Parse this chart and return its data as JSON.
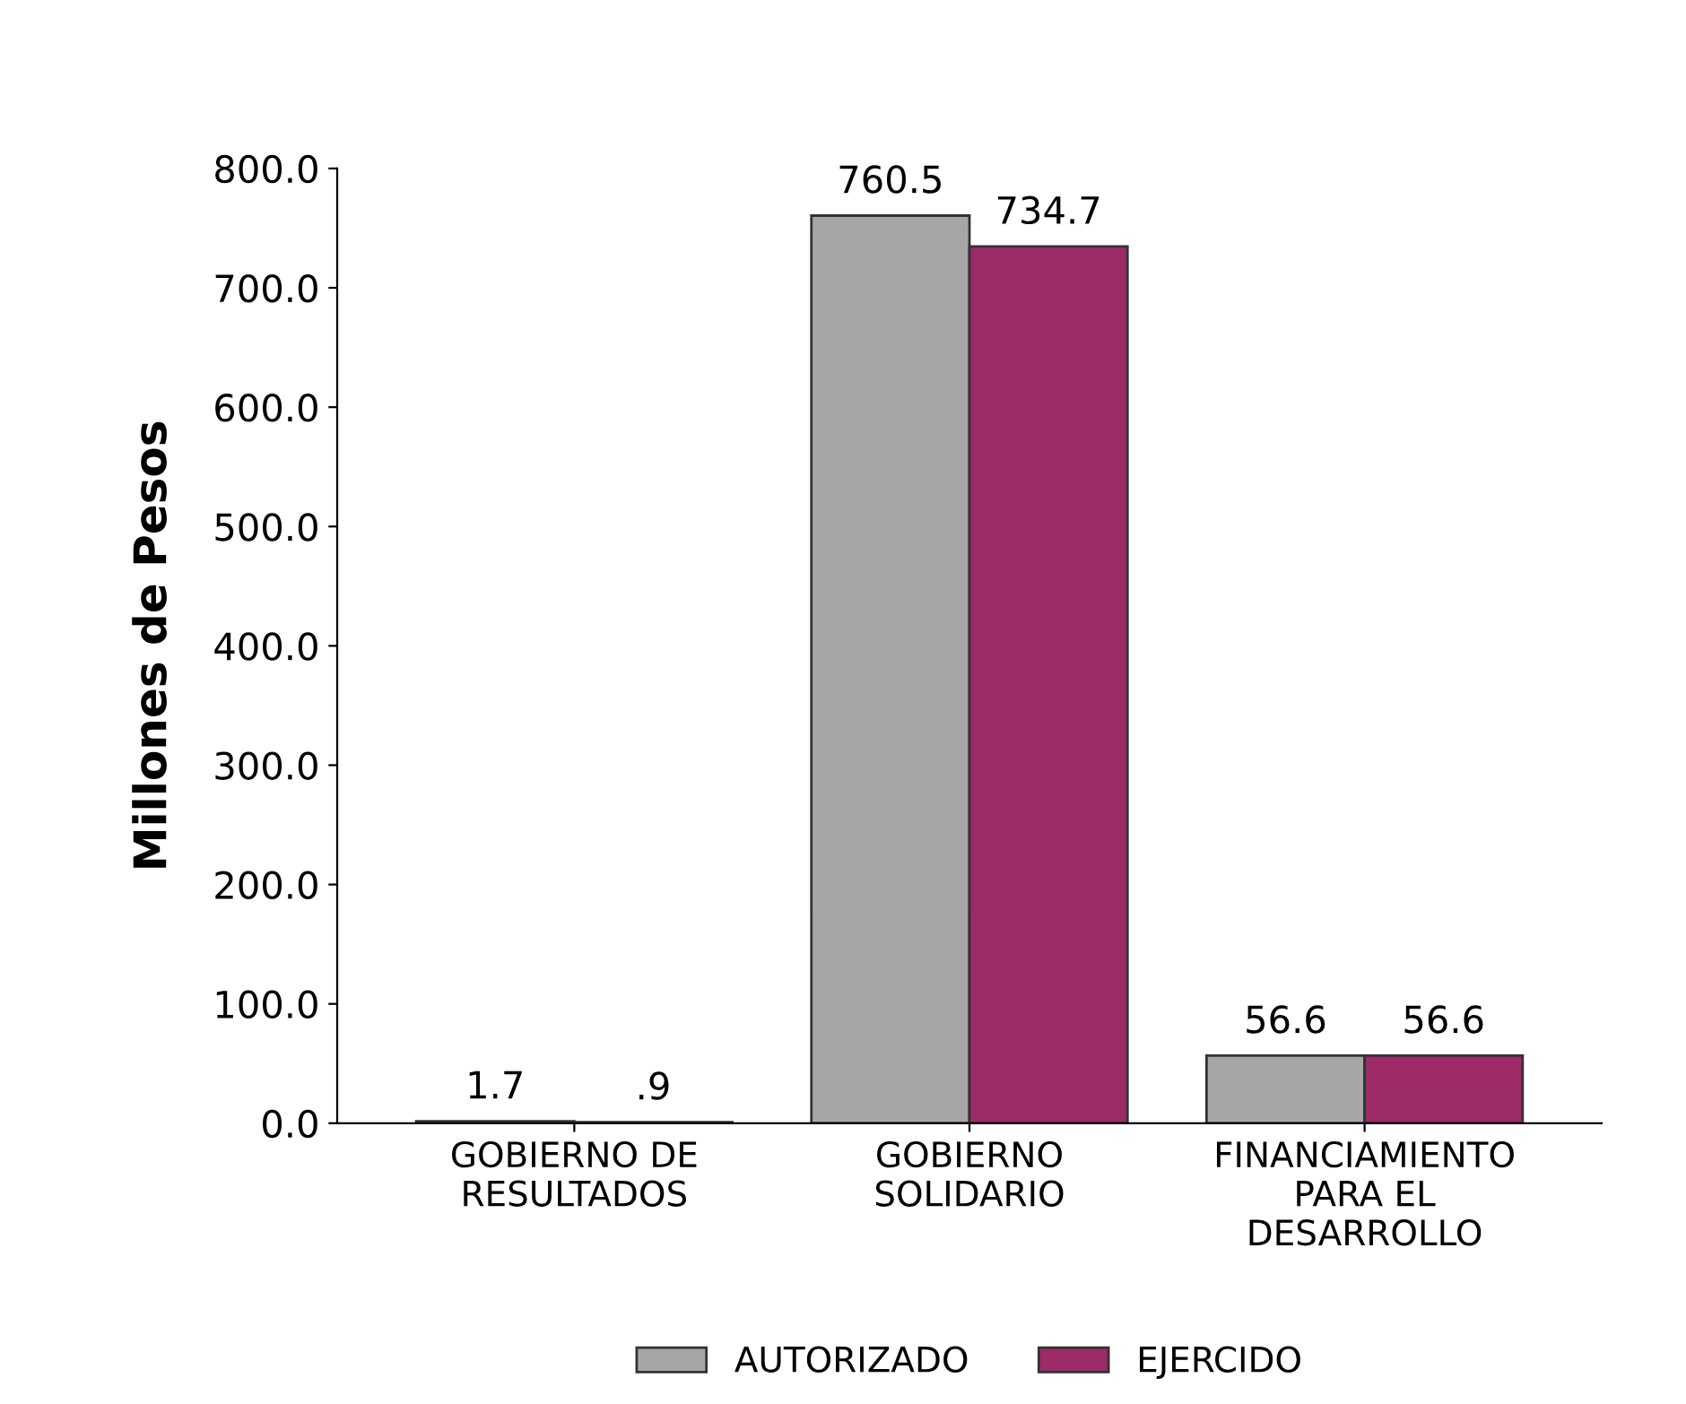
{
  "chart_data": {
    "type": "bar",
    "ylabel": "Millones de Pesos",
    "categories": [
      "GOBIERNO DE\nRESULTADOS",
      "GOBIERNO\nSOLIDARIO",
      "FINANCIAMIENTO\nPARA EL\nDESARROLLO"
    ],
    "series": [
      {
        "name": "AUTORIZADO",
        "color": "#a6a6a6",
        "values": [
          1.7,
          760.5,
          56.6
        ],
        "value_labels": [
          "1.7",
          "760.5",
          "56.6"
        ]
      },
      {
        "name": "EJERCIDO",
        "color": "#9c2b68",
        "values": [
          0.9,
          734.7,
          56.6
        ],
        "value_labels": [
          ".9",
          "734.7",
          "56.6"
        ]
      }
    ],
    "ylim": [
      0,
      800
    ],
    "yticks": [
      {
        "value": 0,
        "label": "0.0"
      },
      {
        "value": 100,
        "label": "100.0"
      },
      {
        "value": 200,
        "label": "200.0"
      },
      {
        "value": 300,
        "label": "300.0"
      },
      {
        "value": 400,
        "label": "400.0"
      },
      {
        "value": 500,
        "label": "500.0"
      },
      {
        "value": 600,
        "label": "600.0"
      },
      {
        "value": 700,
        "label": "700.0"
      },
      {
        "value": 800,
        "label": "800.0"
      }
    ],
    "grid": false,
    "legend": "bottom"
  }
}
